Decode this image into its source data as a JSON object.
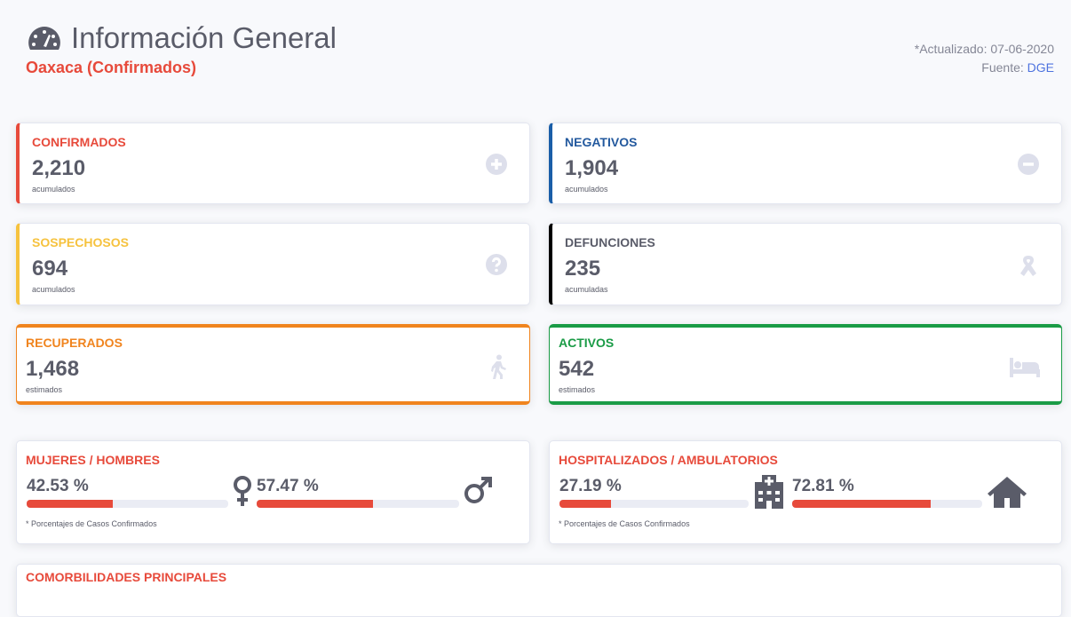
{
  "header": {
    "title": "Información General",
    "subtitle": "Oaxaca (Confirmados)",
    "updated": "*Actualizado: 07-06-2020",
    "source_label": "Fuente:",
    "source_link": "DGE"
  },
  "cards": [
    {
      "label": "CONFIRMADOS",
      "value": "2,210",
      "note": "acumulados"
    },
    {
      "label": "NEGATIVOS",
      "value": "1,904",
      "note": "acumulados"
    },
    {
      "label": "SOSPECHOSOS",
      "value": "694",
      "note": "acumulados"
    },
    {
      "label": "DEFUNCIONES",
      "value": "235",
      "note": "acumuladas"
    },
    {
      "label": "RECUPERADOS",
      "value": "1,468",
      "note": "estimados"
    },
    {
      "label": "ACTIVOS",
      "value": "542",
      "note": "estimados"
    }
  ],
  "splits": [
    {
      "title": "MUJERES / HOMBRES",
      "items": [
        {
          "value": 42.53,
          "label": "42.53 %"
        },
        {
          "value": 57.47,
          "label": "57.47 %"
        }
      ],
      "note": "* Porcentajes  de Casos Confirmados"
    },
    {
      "title": "HOSPITALIZADOS / AMBULATORIOS",
      "items": [
        {
          "value": 27.19,
          "label": "27.19 %"
        },
        {
          "value": 72.81,
          "label": "72.81 %"
        }
      ],
      "note": "* Porcentajes  de Casos Confirmados"
    }
  ],
  "next_section": {
    "title": "COMORBILIDADES PRINCIPALES"
  }
}
